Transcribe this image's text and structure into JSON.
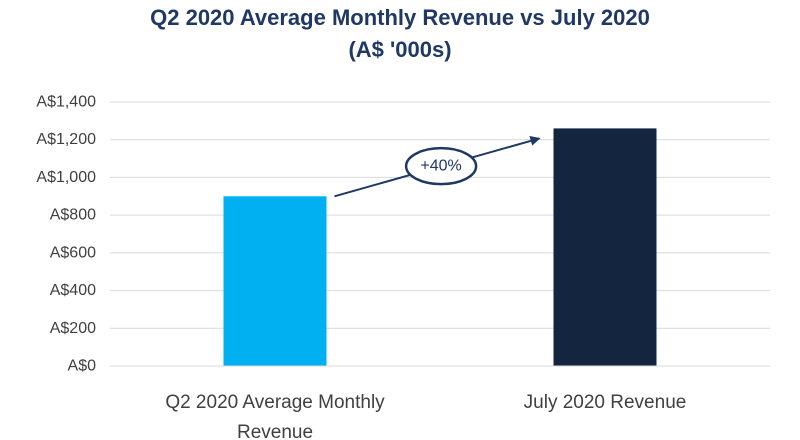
{
  "chart_data": {
    "type": "bar",
    "title_lines": [
      "Q2 2020 Average Monthly Revenue vs July 2020",
      "(A$ '000s)"
    ],
    "categories": [
      "Q2 2020 Average Monthly Revenue",
      "July 2020 Revenue"
    ],
    "category_label_lines": [
      [
        "Q2 2020 Average Monthly",
        "Revenue"
      ],
      [
        "July 2020 Revenue"
      ]
    ],
    "values": [
      900,
      1260
    ],
    "bar_colors": [
      "#00b0f0",
      "#13253f"
    ],
    "xlabel": "",
    "ylabel": "",
    "ylim": [
      0,
      1400
    ],
    "y_ticks": [
      0,
      200,
      400,
      600,
      800,
      1000,
      1200,
      1400
    ],
    "y_tick_labels": [
      "A$0",
      "A$200",
      "A$400",
      "A$600",
      "A$800",
      "A$1,000",
      "A$1,200",
      "A$1,400"
    ],
    "grid": true,
    "legend": "none",
    "annotation": {
      "text": "+40%",
      "from_category": 0,
      "to_category": 1,
      "color": "#1f3864"
    }
  }
}
